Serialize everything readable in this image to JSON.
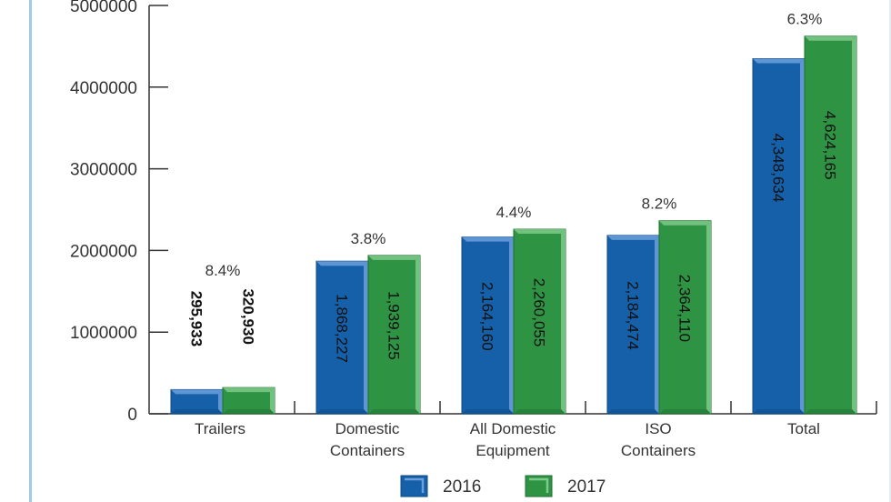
{
  "chart_data": {
    "type": "bar",
    "title": "",
    "xlabel": "",
    "ylabel": "",
    "ylim": [
      0,
      5000000
    ],
    "yticks": [
      0,
      1000000,
      2000000,
      3000000,
      4000000,
      5000000
    ],
    "ytick_labels": [
      "0",
      "1000000",
      "2000000",
      "3000000",
      "4000000",
      "5000000"
    ],
    "grid": false,
    "categories": [
      [
        "Trailers"
      ],
      [
        "Domestic",
        "Containers"
      ],
      [
        "All Domestic",
        "Equipment"
      ],
      [
        "ISO",
        "Containers"
      ],
      [
        "Total"
      ]
    ],
    "series": [
      {
        "name": "2016",
        "color": "#1560a8",
        "values": [
          295933,
          1868227,
          2164160,
          2184474,
          4348634
        ],
        "labels": [
          "295,933",
          "1,868,227",
          "2,164,160",
          "2,184,474",
          "4,348,634"
        ]
      },
      {
        "name": "2017",
        "color": "#2e9444",
        "values": [
          320930,
          1939125,
          2260055,
          2364110,
          4624165
        ],
        "labels": [
          "320,930",
          "1,939,125",
          "2,260,055",
          "2,364,110",
          "4,624,165"
        ]
      }
    ],
    "annotations": [
      "8.4%",
      "3.8%",
      "4.4%",
      "8.2%",
      "6.3%"
    ],
    "legend": {
      "position": "bottom-center",
      "entries": [
        "2016",
        "2017"
      ]
    }
  }
}
